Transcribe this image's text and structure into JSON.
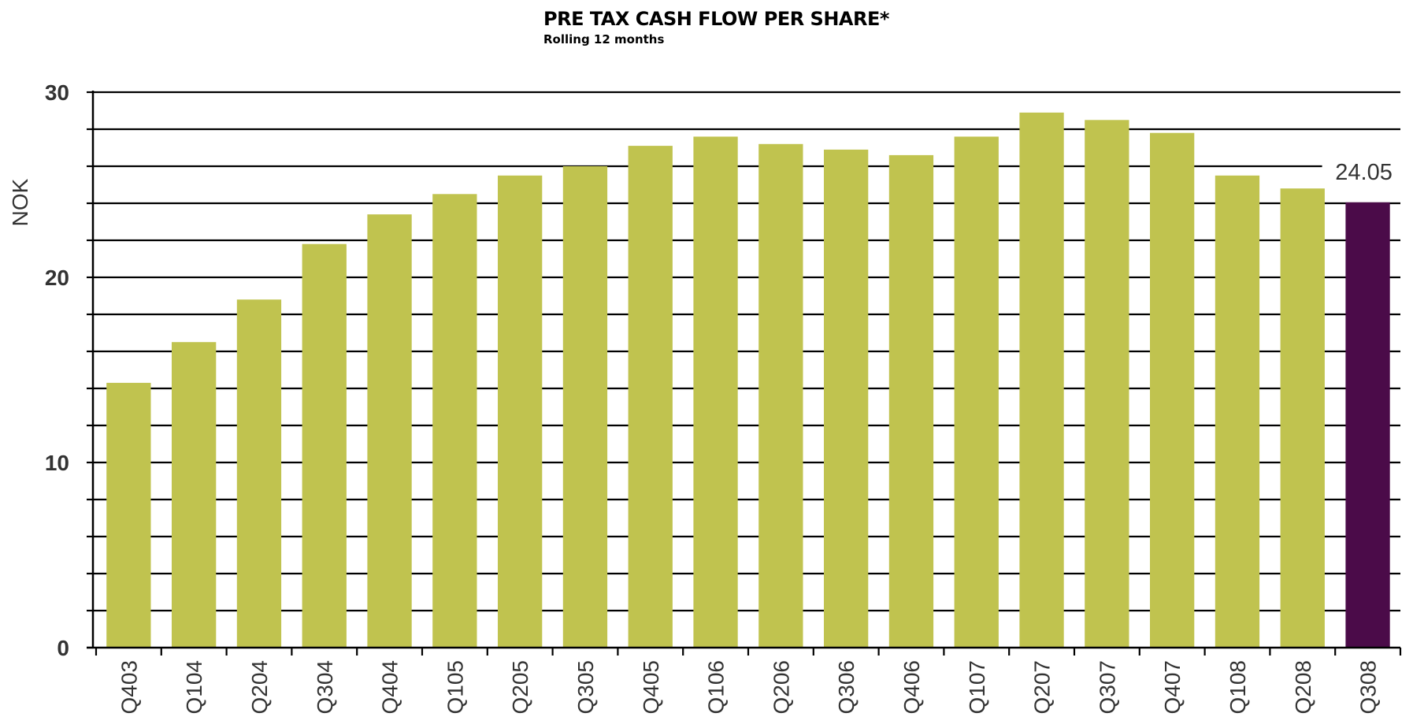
{
  "chart_data": {
    "type": "bar",
    "title": "PRE TAX CASH FLOW PER SHARE*",
    "subtitle": "Rolling 12 months",
    "ylabel": "NOK",
    "xlabel": "",
    "ylim": [
      0,
      30
    ],
    "yticks": [
      0,
      10,
      20,
      30
    ],
    "grid": true,
    "categories": [
      "Q403",
      "Q104",
      "Q204",
      "Q304",
      "Q404",
      "Q105",
      "Q205",
      "Q305",
      "Q405",
      "Q106",
      "Q206",
      "Q306",
      "Q406",
      "Q107",
      "Q207",
      "Q307",
      "Q407",
      "Q108",
      "Q208",
      "Q308"
    ],
    "values": [
      14.3,
      16.5,
      18.8,
      21.8,
      23.4,
      24.5,
      25.5,
      26.0,
      27.1,
      27.6,
      27.2,
      26.9,
      26.6,
      27.6,
      28.9,
      28.5,
      27.8,
      25.5,
      24.8,
      24.05
    ],
    "data_labels": [
      {
        "category": "Q308",
        "text": "24.05"
      }
    ],
    "colors": {
      "bar": "#c0c34f",
      "highlight_bar": "#4b0b49",
      "grid": "#000000",
      "tick_text": "#333333"
    },
    "highlight_category": "Q308"
  }
}
